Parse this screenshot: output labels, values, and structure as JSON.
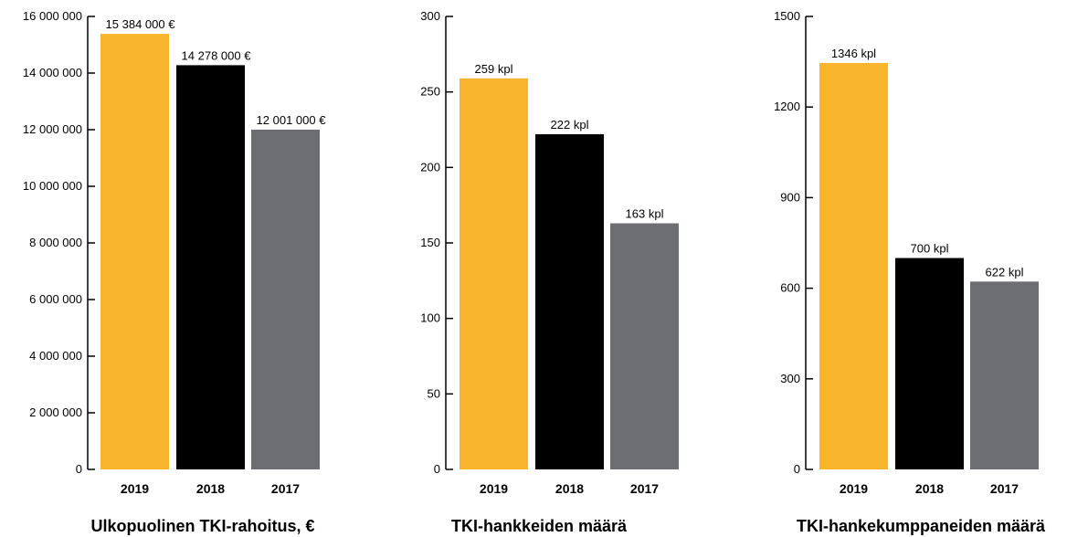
{
  "colors": {
    "y2019": "#F7B42C",
    "y2018": "#000000",
    "y2017": "#6D6E71",
    "axis": "#000000"
  },
  "chart_data": [
    {
      "type": "bar",
      "title": "Ulkopuolinen TKI-rahoitus, €",
      "categories": [
        "2019",
        "2018",
        "2017"
      ],
      "values": [
        15384000,
        14278000,
        12001000
      ],
      "data_labels": [
        "15 384 000 €",
        "14 278  000 €",
        "12 001 000 €"
      ],
      "ylim": [
        0,
        16000000
      ],
      "yticks": [
        0,
        2000000,
        4000000,
        6000000,
        8000000,
        10000000,
        12000000,
        14000000,
        16000000
      ],
      "ytick_labels": [
        "0",
        "2 000 000",
        "4 000 000",
        "6 000 000",
        "8 000 000",
        "10 000 000",
        "12 000 000",
        "14 000 000",
        "16 000 000"
      ],
      "xlabel": "",
      "ylabel": "",
      "grid": false,
      "legend": "none"
    },
    {
      "type": "bar",
      "title": "TKI-hankkeiden määrä",
      "categories": [
        "2019",
        "2018",
        "2017"
      ],
      "values": [
        259,
        222,
        163
      ],
      "data_labels": [
        "259 kpl",
        "222 kpl",
        "163 kpl"
      ],
      "ylim": [
        0,
        300
      ],
      "yticks": [
        0,
        50,
        100,
        150,
        200,
        250,
        300
      ],
      "ytick_labels": [
        "0",
        "50",
        "100",
        "150",
        "200",
        "250",
        "300"
      ],
      "xlabel": "",
      "ylabel": "",
      "grid": false,
      "legend": "none"
    },
    {
      "type": "bar",
      "title": "TKI-hankekumppaneiden määrä",
      "categories": [
        "2019",
        "2018",
        "2017"
      ],
      "values": [
        1346,
        700,
        622
      ],
      "data_labels": [
        "1346 kpl",
        "700 kpl",
        "622 kpl"
      ],
      "ylim": [
        0,
        1500
      ],
      "yticks": [
        0,
        300,
        600,
        900,
        1200,
        1500
      ],
      "ytick_labels": [
        "0",
        "300",
        "600",
        "900",
        "1200",
        "1500"
      ],
      "xlabel": "",
      "ylabel": "",
      "grid": false,
      "legend": "none"
    }
  ]
}
